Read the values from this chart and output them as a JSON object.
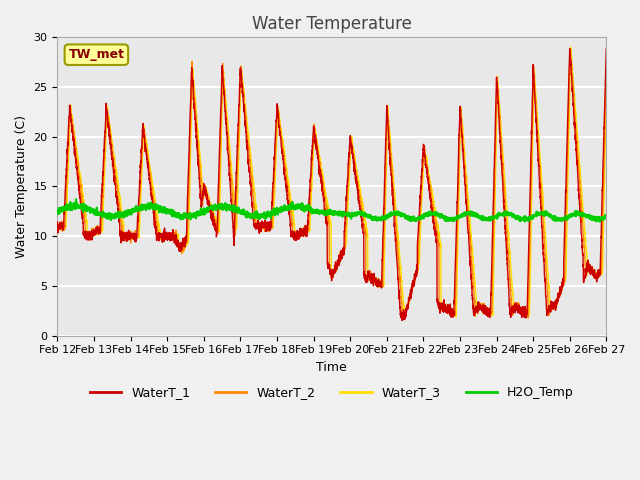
{
  "title": "Water Temperature",
  "xlabel": "Time",
  "ylabel": "Water Temperature (C)",
  "ylim": [
    0,
    30
  ],
  "xlim": [
    0,
    360
  ],
  "background_color": "#e8e8e8",
  "grid_color": "#ffffff",
  "annotation_text": "TW_met",
  "annotation_bg": "#ffff99",
  "annotation_border": "#999900",
  "annotation_color": "#880000",
  "series": {
    "WaterT_1": {
      "color": "#cc0000",
      "lw": 1.0
    },
    "WaterT_2": {
      "color": "#ff8800",
      "lw": 1.0
    },
    "WaterT_3": {
      "color": "#ffdd00",
      "lw": 1.0
    },
    "H2O_Temp": {
      "color": "#00cc00",
      "lw": 1.5
    }
  },
  "xtick_labels": [
    "Feb 12",
    "Feb 13",
    "Feb 14",
    "Feb 15",
    "Feb 16",
    "Feb 17",
    "Feb 18",
    "Feb 19",
    "Feb 20",
    "Feb 21",
    "Feb 22",
    "Feb 23",
    "Feb 24",
    "Feb 25",
    "Feb 26",
    "Feb 27"
  ],
  "xtick_positions": [
    0,
    24,
    48,
    72,
    96,
    120,
    144,
    168,
    192,
    216,
    240,
    264,
    288,
    312,
    336,
    360
  ],
  "ytick_positions": [
    0,
    5,
    10,
    15,
    20,
    25,
    30
  ]
}
